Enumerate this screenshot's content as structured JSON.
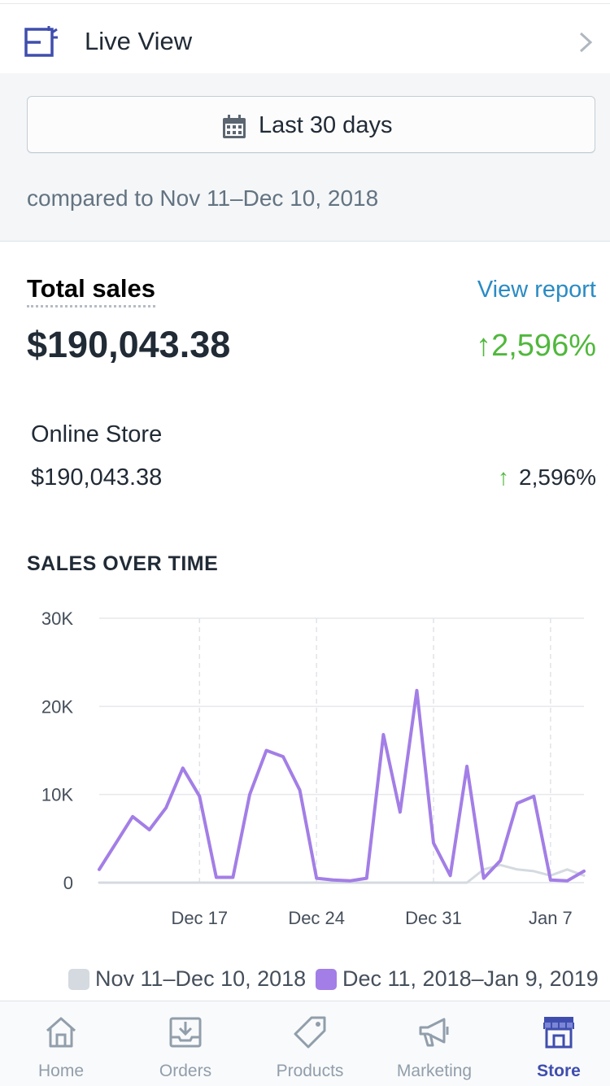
{
  "live_view": {
    "label": "Live View"
  },
  "filter": {
    "date_range_label": "Last 30 days",
    "compared_text": "compared to Nov 11–Dec 10, 2018"
  },
  "total_sales": {
    "title": "Total sales",
    "view_report": "View report",
    "amount": "$190,043.38",
    "change": "2,596%"
  },
  "online_store": {
    "label": "Online Store",
    "amount": "$190,043.38",
    "change": "2,596%"
  },
  "chart_title": "SALES OVER TIME",
  "colors": {
    "accent": "#3f4eae",
    "positive": "#50b83c",
    "link": "#2a8bc4",
    "current": "#a37ee6",
    "previous": "#d4dae0"
  },
  "chart_data": {
    "type": "line",
    "x_ticks": [
      {
        "label": "Dec 17",
        "day": 6
      },
      {
        "label": "Dec 24",
        "day": 13
      },
      {
        "label": "Dec 31",
        "day": 20
      },
      {
        "label": "Jan 7",
        "day": 27
      }
    ],
    "y_ticks": [
      "30K",
      "20K",
      "10K",
      "0"
    ],
    "ylim": [
      0,
      30000
    ],
    "grid": true,
    "legend_position": "bottom",
    "series": [
      {
        "name": "Nov 11–Dec 10, 2018",
        "color": "#d4dae0",
        "values": [
          0,
          0,
          0,
          0,
          0,
          0,
          0,
          0,
          0,
          0,
          0,
          0,
          0,
          0,
          0,
          0,
          0,
          0,
          0,
          0,
          0,
          0,
          0,
          1500,
          2000,
          1500,
          1300,
          800,
          1500,
          800
        ]
      },
      {
        "name": "Dec 11, 2018–Jan 9, 2019",
        "color": "#a37ee6",
        "values": [
          1500,
          4500,
          7500,
          6000,
          8500,
          13000,
          9800,
          600,
          600,
          10000,
          15000,
          14300,
          10500,
          500,
          300,
          200,
          500,
          16800,
          8000,
          21800,
          4500,
          800,
          13200,
          500,
          2500,
          9000,
          9800,
          300,
          200,
          1300
        ]
      }
    ]
  },
  "tabs": [
    {
      "label": "Home",
      "icon": "home-icon"
    },
    {
      "label": "Orders",
      "icon": "orders-icon"
    },
    {
      "label": "Products",
      "icon": "products-icon"
    },
    {
      "label": "Marketing",
      "icon": "marketing-icon"
    },
    {
      "label": "Store",
      "icon": "store-icon"
    }
  ]
}
